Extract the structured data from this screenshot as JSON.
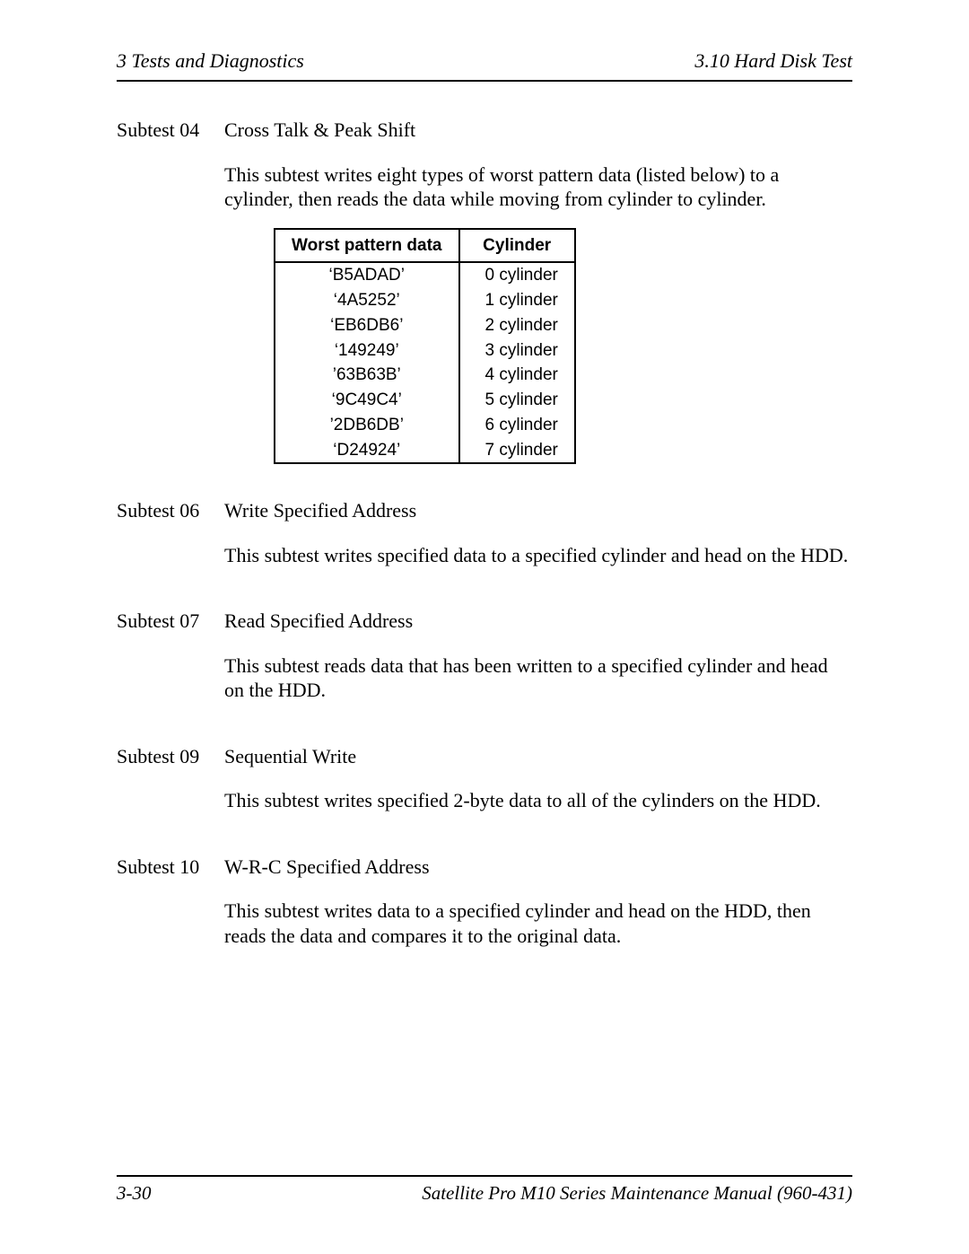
{
  "header": {
    "left": "3  Tests and Diagnostics",
    "right": "3.10  Hard Disk Test"
  },
  "subtests": [
    {
      "label": "Subtest 04",
      "title": "Cross Talk & Peak Shift",
      "desc": "This subtest writes eight types of worst pattern data (listed below) to a cylinder, then reads the data while moving from cylinder to cylinder.",
      "has_table": true
    },
    {
      "label": "Subtest 06",
      "title": "Write Specified Address",
      "desc": "This subtest writes specified data to a specified cylinder and head on the HDD.",
      "has_table": false
    },
    {
      "label": "Subtest 07",
      "title": "Read Specified Address",
      "desc": "This subtest reads data that has been written to a specified cylinder and head on the HDD.",
      "has_table": false
    },
    {
      "label": "Subtest 09",
      "title": "Sequential Write",
      "desc": "This subtest writes specified 2-byte data to all of the cylinders on the HDD.",
      "has_table": false
    },
    {
      "label": "Subtest 10",
      "title": "W-R-C Specified Address",
      "desc": "This subtest writes data to a specified cylinder and head on the HDD, then reads the data and compares it to the original data.",
      "has_table": false
    }
  ],
  "table": {
    "columns": [
      "Worst pattern data",
      "Cylinder"
    ],
    "rows": [
      [
        "‘B5ADAD’",
        "0 cylinder"
      ],
      [
        "‘4A5252’",
        "1 cylinder"
      ],
      [
        "‘EB6DB6’",
        "2 cylinder"
      ],
      [
        "‘149249’",
        "3 cylinder"
      ],
      [
        "’63B63B’",
        "4 cylinder"
      ],
      [
        "‘9C49C4’",
        "5 cylinder"
      ],
      [
        "’2DB6DB’",
        "6 cylinder"
      ],
      [
        "‘D24924’",
        "7 cylinder"
      ]
    ],
    "border_color": "#000000",
    "font_family": "Arial",
    "header_fontsize": 19,
    "cell_fontsize": 19
  },
  "footer": {
    "left": "3-30",
    "right": "Satellite Pro M10 Series Maintenance Manual (960-431)"
  },
  "page_bg": "#ffffff",
  "rule_color": "#000000",
  "body_fontsize": 22
}
